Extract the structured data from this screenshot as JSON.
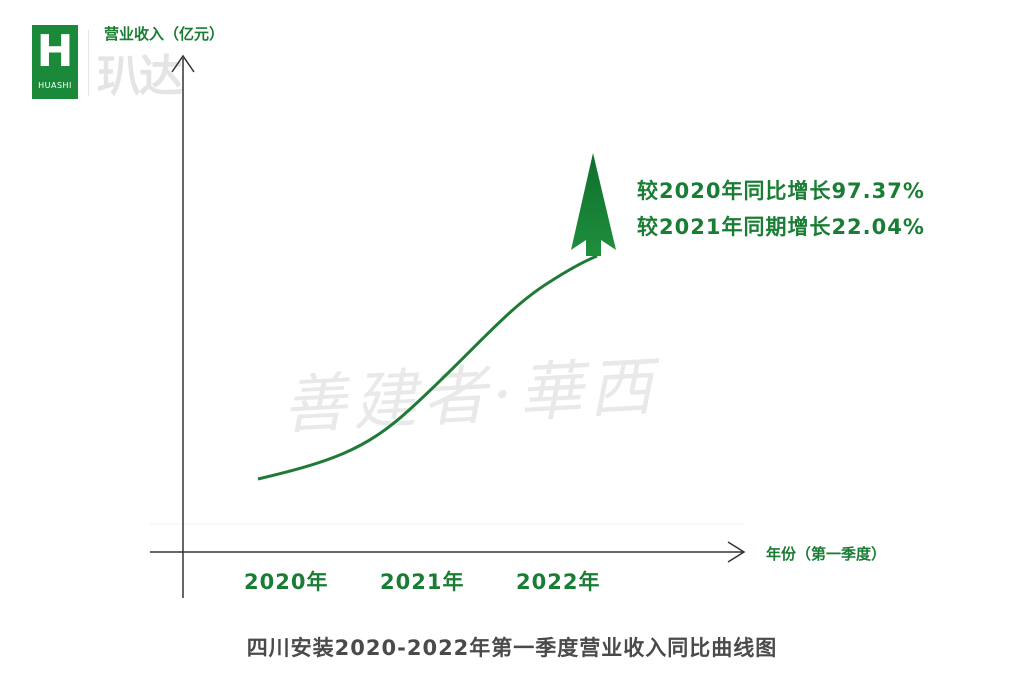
{
  "logo": {
    "icon": "huashi-logo-icon",
    "brand": "HUASHI",
    "glyph": "玐达"
  },
  "watermark": "善建者·華西",
  "colors": {
    "accent": "#1a7d34",
    "curve": "#1f7a37",
    "axis": "#333333",
    "caption": "#4a4a4a"
  },
  "chart_data": {
    "type": "line",
    "title": "四川安装2020-2022年第一季度营业收入同比曲线图",
    "xlabel": "年份（第一季度）",
    "ylabel": "营业收入（亿元）",
    "categories": [
      "2020年",
      "2021年",
      "2022年"
    ],
    "grid": false,
    "legend": "none",
    "trend": "increasing",
    "arrow": "up",
    "annotations": [
      "较2020年同比增长97.37%",
      "较2021年同期增长22.04%"
    ]
  }
}
